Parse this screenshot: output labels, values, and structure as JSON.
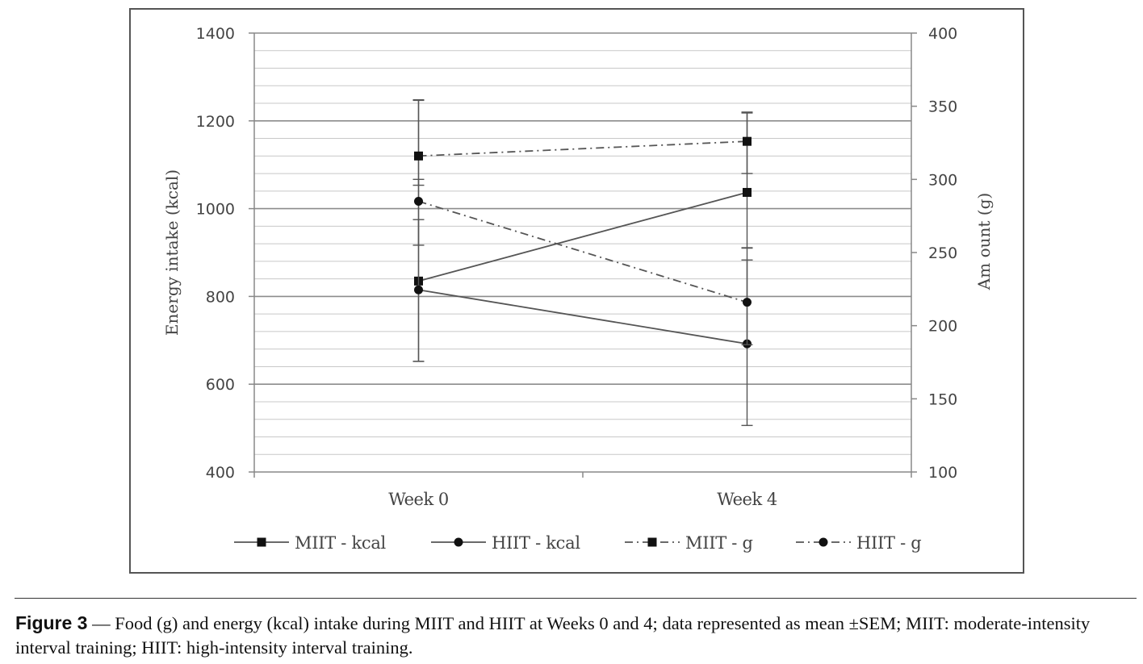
{
  "chart_data": {
    "type": "line",
    "categories": [
      "Week 0",
      "Week 4"
    ],
    "y_left": {
      "label": "Energy intake (kcal)",
      "range": [
        400,
        1400
      ],
      "ticks": [
        400,
        600,
        800,
        1000,
        1200,
        1400
      ]
    },
    "y_right": {
      "label": "Am ount (g)",
      "range": [
        100,
        400
      ],
      "ticks": [
        100,
        150,
        200,
        250,
        300,
        350,
        400
      ]
    },
    "grid": true,
    "legend_position": "bottom",
    "series": [
      {
        "name": "MIIT - kcal",
        "axis": "left",
        "marker": "square",
        "dash": "solid",
        "values": [
          835,
          1037
        ],
        "error_low": [
          652,
          911
        ],
        "error_high": [
          1248,
          1218
        ]
      },
      {
        "name": "HIIT - kcal",
        "axis": "left",
        "marker": "circle",
        "dash": "solid",
        "values": [
          815,
          692
        ],
        "error_low": [
          652,
          506
        ],
        "error_high": [
          975,
          883
        ]
      },
      {
        "name": "MIIT - g",
        "axis": "right",
        "marker": "square",
        "dash": "dashdot",
        "values": [
          316,
          326
        ],
        "error_low": [
          296,
          304
        ],
        "error_high": [
          354,
          346
        ]
      },
      {
        "name": "HIIT - g",
        "axis": "right",
        "marker": "circle",
        "dash": "dashdot",
        "values": [
          285,
          216
        ],
        "error_low": [
          255,
          187
        ],
        "error_high": [
          300,
          253
        ]
      }
    ]
  },
  "caption": {
    "label": "Figure 3",
    "text": " — Food (g) and energy (kcal) intake during MIIT and HIIT at Weeks 0 and 4; data represented as mean ±SEM; MIIT: moderate-intensity interval training; HIIT: high-intensity interval training."
  }
}
